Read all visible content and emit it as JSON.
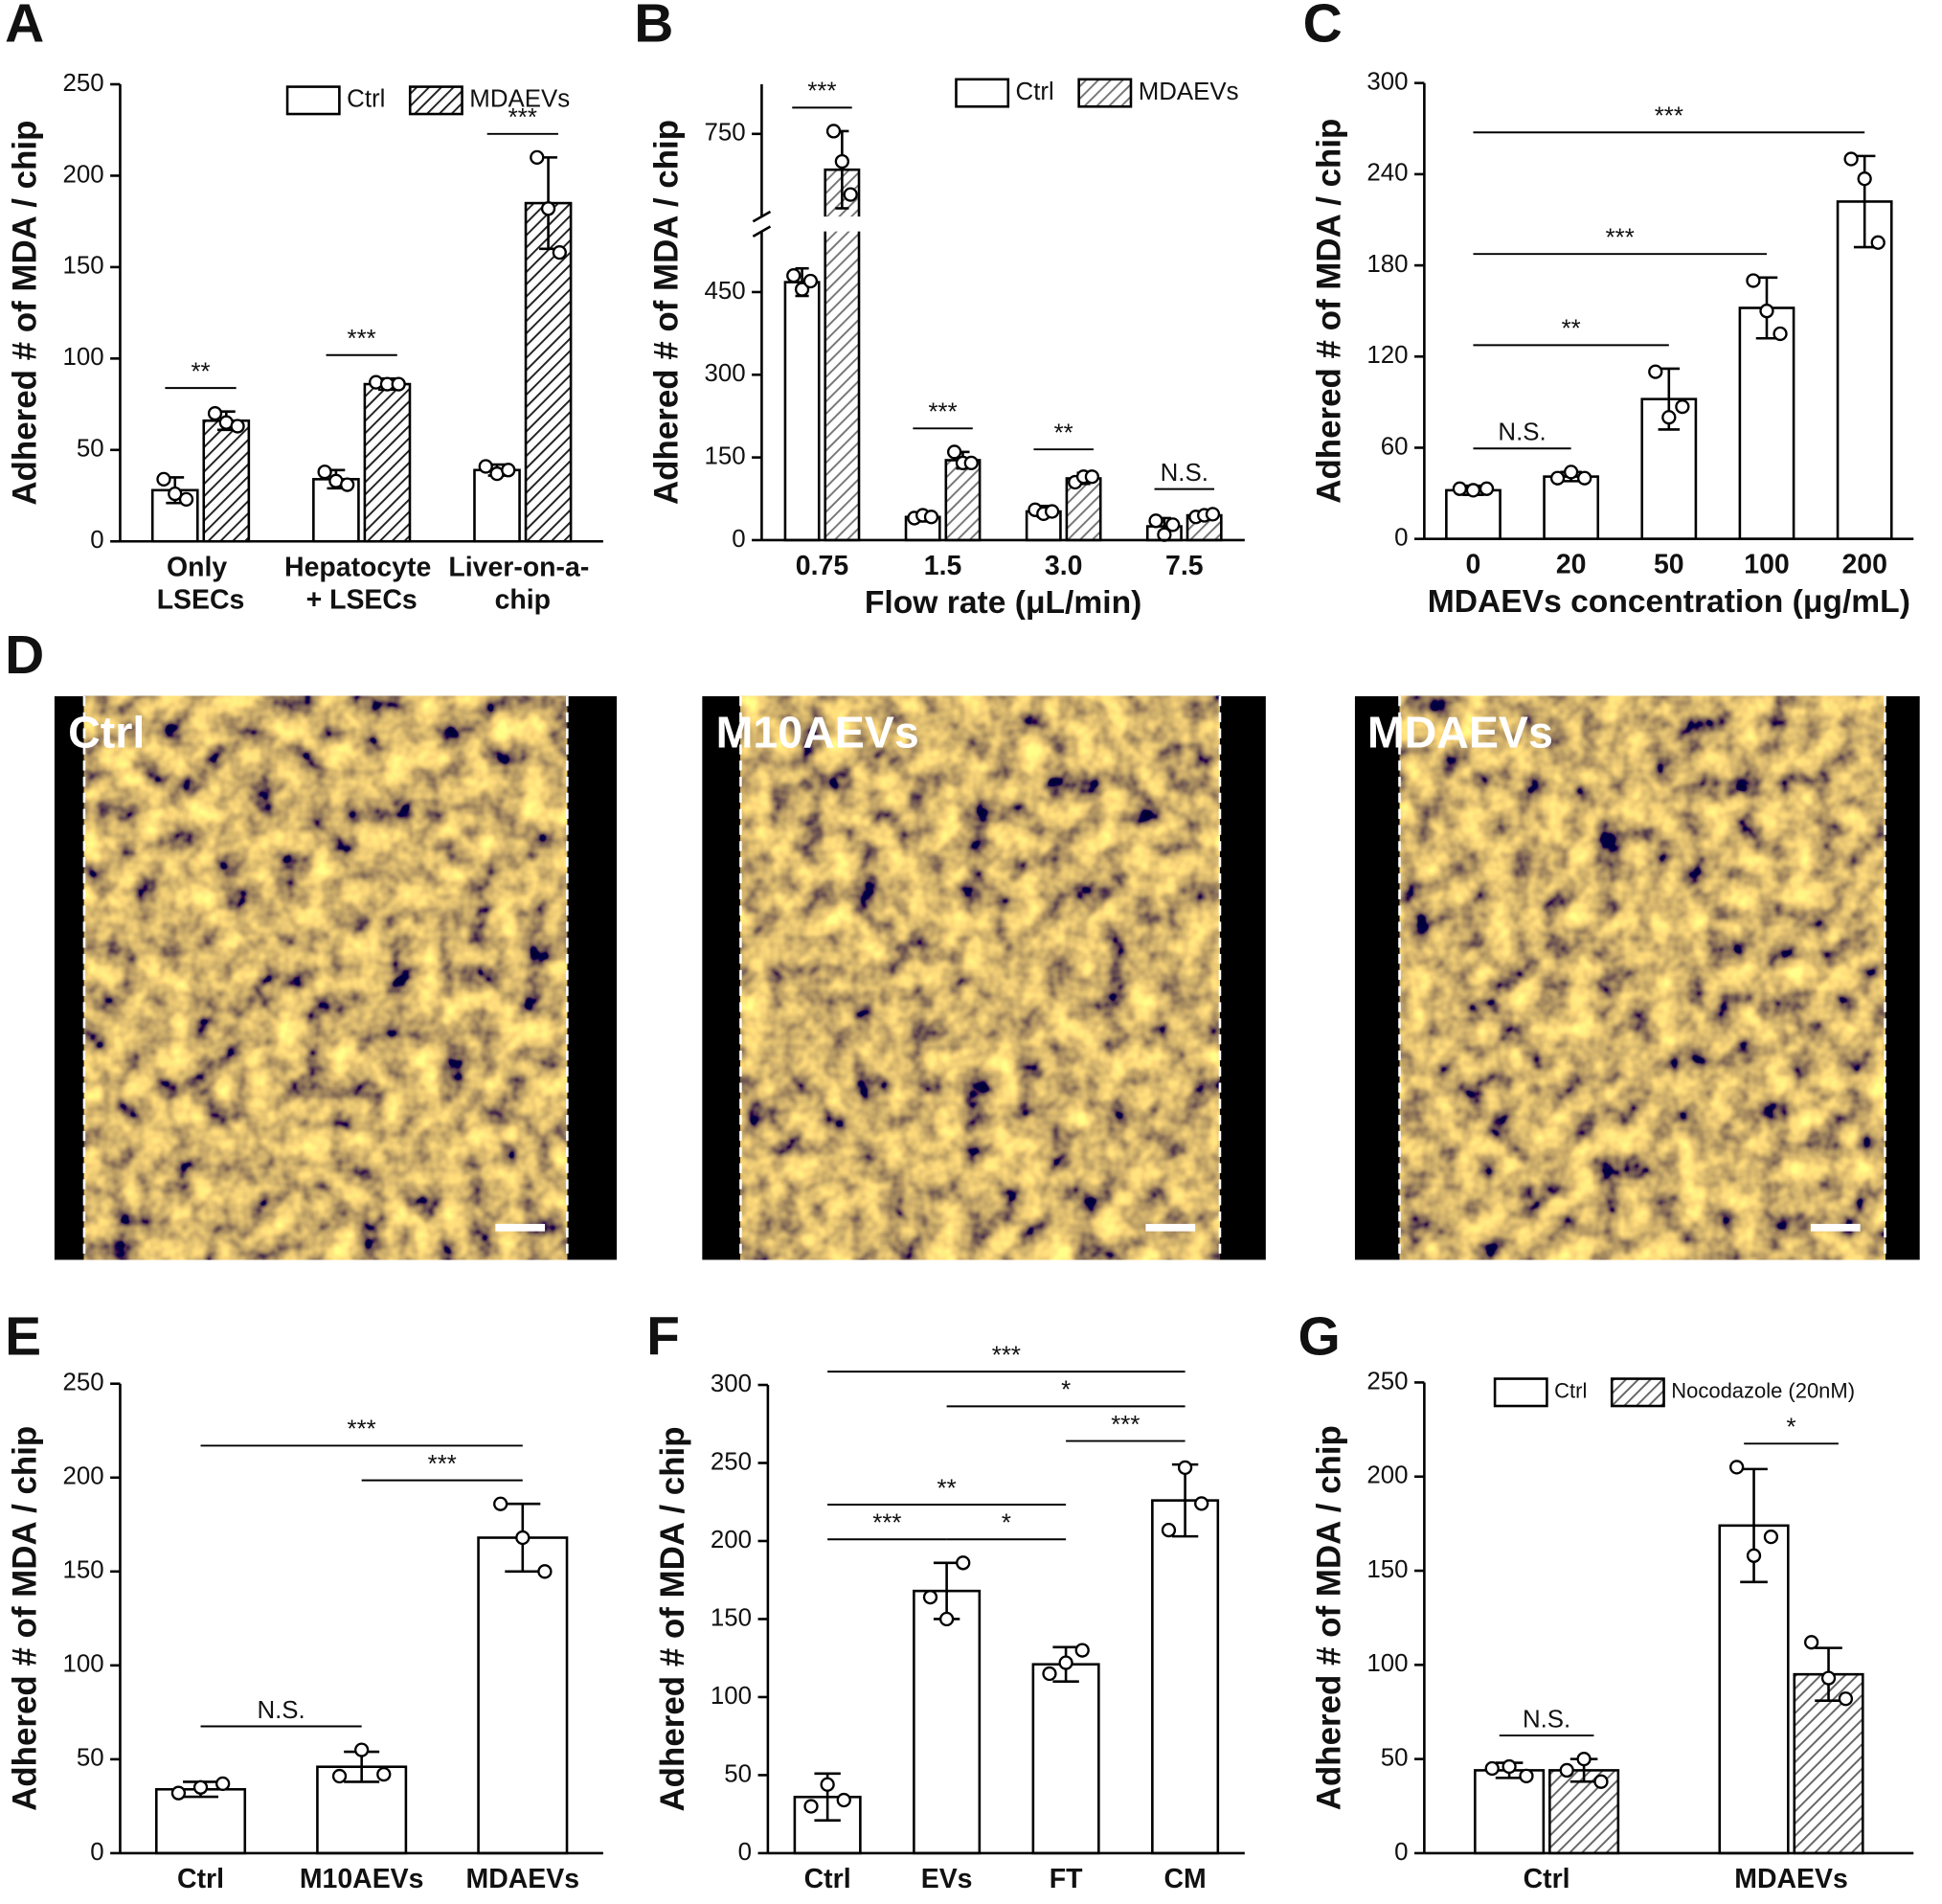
{
  "panels": [
    "A",
    "B",
    "C",
    "D",
    "E",
    "F",
    "G"
  ],
  "micrographs": {
    "labels": [
      "Ctrl",
      "M10AEVs",
      "MDAEVs"
    ]
  },
  "chart_data": [
    {
      "type": "bar",
      "y_label": "Adhered # of MDA / chip",
      "categories": [
        "Only\nLSECs",
        "Hepatocyte\n+ LSECs",
        "Liver-on-a-\nchip"
      ],
      "series": [
        {
          "name": "Ctrl",
          "color": "#ffffff",
          "values": [
            28,
            34,
            39
          ],
          "errors": [
            7,
            5,
            3
          ],
          "points": [
            [
              34,
              26,
              23
            ],
            [
              38,
              33,
              31
            ],
            [
              41,
              37,
              39
            ]
          ]
        },
        {
          "name": "MDAEVs",
          "color": "#ffffff",
          "hatch": "#222222",
          "values": [
            66,
            86,
            185
          ],
          "errors": [
            5,
            3,
            25
          ],
          "points": [
            [
              70,
              65,
              63
            ],
            [
              87,
              86,
              86
            ],
            [
              210,
              182,
              158
            ]
          ]
        }
      ],
      "ylim": [
        0,
        250
      ],
      "yticks": [
        0,
        50,
        100,
        150,
        200,
        250
      ],
      "significance": [
        "**",
        "***",
        "***"
      ]
    },
    {
      "type": "bar",
      "y_label": "Adhered # of MDA / chip",
      "x_label": "Flow rate (μL/min)",
      "categories": [
        "0.75",
        "1.5",
        "3.0",
        "7.5"
      ],
      "series": [
        {
          "name": "Ctrl",
          "color": "#ffffff",
          "values": [
            468,
            42,
            52,
            25
          ],
          "errors": [
            25,
            8,
            10,
            15
          ],
          "points": [
            [
              480,
              455,
              470
            ],
            [
              40,
              45,
              42
            ],
            [
              55,
              48,
              52
            ],
            [
              35,
              10,
              28
            ]
          ]
        },
        {
          "name": "MDAEVs",
          "color": "#ffffff",
          "hatch": "#777777",
          "values": [
            685,
            145,
            112,
            45
          ],
          "errors": [
            70,
            15,
            10,
            5
          ],
          "points": [
            [
              755,
              700,
              640
            ],
            [
              160,
              140,
              140
            ],
            [
              105,
              115,
              115
            ],
            [
              42,
              45,
              47
            ]
          ]
        }
      ],
      "ylim": [
        0,
        840
      ],
      "ybreak": [
        560,
        600
      ],
      "yticks": [
        0,
        150,
        300,
        450,
        750
      ],
      "significance": [
        "***",
        "***",
        "**",
        "N.S."
      ]
    },
    {
      "type": "bar",
      "y_label": "Adhered # of MDA / chip",
      "x_label": "MDAEVs concentration (μg/mL)",
      "categories": [
        "0",
        "20",
        "50",
        "100",
        "200"
      ],
      "series": [
        {
          "color": "#ffffff",
          "values": [
            32,
            41,
            92,
            152,
            222
          ],
          "errors": [
            3,
            3,
            20,
            20,
            30
          ],
          "points": [
            [
              33,
              32,
              33
            ],
            [
              40,
              44,
              40
            ],
            [
              110,
              80,
              87
            ],
            [
              170,
              150,
              135
            ],
            [
              250,
              237,
              195
            ]
          ]
        }
      ],
      "ylim": [
        0,
        300
      ],
      "yticks": [
        0,
        60,
        120,
        180,
        240,
        300
      ],
      "comparisons": [
        {
          "text": "N.S.",
          "between": [
            "0",
            "20"
          ]
        },
        {
          "text": "**",
          "between": [
            "0",
            "50"
          ]
        },
        {
          "text": "***",
          "between": [
            "0",
            "100"
          ]
        },
        {
          "text": "***",
          "between": [
            "0",
            "200"
          ]
        }
      ]
    },
    {
      "type": "bar",
      "y_label": "Adhered # of MDA / chip",
      "categories": [
        "Ctrl",
        "M10AEVs",
        "MDAEVs"
      ],
      "series": [
        {
          "color": "#ffffff",
          "values": [
            34,
            46,
            168
          ],
          "errors": [
            4,
            8,
            18
          ],
          "points": [
            [
              32,
              35,
              37
            ],
            [
              41,
              55,
              42
            ],
            [
              186,
              168,
              150
            ]
          ]
        }
      ],
      "ylim": [
        0,
        250
      ],
      "yticks": [
        0,
        50,
        100,
        150,
        200,
        250
      ],
      "comparisons": [
        {
          "text": "N.S.",
          "between": [
            "Ctrl",
            "M10AEVs"
          ]
        },
        {
          "text": "***",
          "between": [
            "M10AEVs",
            "MDAEVs"
          ]
        },
        {
          "text": "***",
          "between": [
            "Ctrl",
            "MDAEVs"
          ]
        }
      ]
    },
    {
      "type": "bar",
      "y_label": "Adhered # of MDA / chip",
      "categories": [
        "Ctrl",
        "EVs",
        "FT",
        "CM"
      ],
      "series": [
        {
          "color": "#ffffff",
          "values": [
            36,
            168,
            121,
            226
          ],
          "errors": [
            15,
            18,
            11,
            23
          ],
          "points": [
            [
              30,
              44,
              34
            ],
            [
              164,
              150,
              186
            ],
            [
              115,
              122,
              130
            ],
            [
              207,
              247,
              224
            ]
          ]
        }
      ],
      "ylim": [
        0,
        300
      ],
      "yticks": [
        0,
        50,
        100,
        150,
        200,
        250,
        300
      ],
      "comparisons": [
        {
          "text": "***",
          "between": [
            "Ctrl",
            "EVs"
          ]
        },
        {
          "text": "*",
          "between": [
            "EVs",
            "FT"
          ]
        },
        {
          "text": "**",
          "between": [
            "Ctrl",
            "FT"
          ]
        },
        {
          "text": "***",
          "between": [
            "FT",
            "CM"
          ]
        },
        {
          "text": "*",
          "between": [
            "EVs",
            "CM"
          ]
        },
        {
          "text": "***",
          "between": [
            "Ctrl",
            "CM"
          ]
        }
      ]
    },
    {
      "type": "bar",
      "y_label": "Adhered # of MDA / chip",
      "categories": [
        "Ctrl",
        "MDAEVs"
      ],
      "series": [
        {
          "name": "Ctrl",
          "color": "#ffffff",
          "values": [
            44,
            174
          ],
          "errors": [
            4,
            30
          ],
          "points": [
            [
              45,
              46,
              41
            ],
            [
              205,
              158,
              168
            ]
          ]
        },
        {
          "name": "Nocodazole (20nM)",
          "color": "#ffffff",
          "hatch": "#666666",
          "values": [
            44,
            95
          ],
          "errors": [
            6,
            14
          ],
          "points": [
            [
              44,
              50,
              38
            ],
            [
              112,
              93,
              82
            ]
          ]
        }
      ],
      "ylim": [
        0,
        250
      ],
      "yticks": [
        0,
        50,
        100,
        150,
        200,
        250
      ],
      "significance": [
        "N.S.",
        "*"
      ]
    }
  ]
}
